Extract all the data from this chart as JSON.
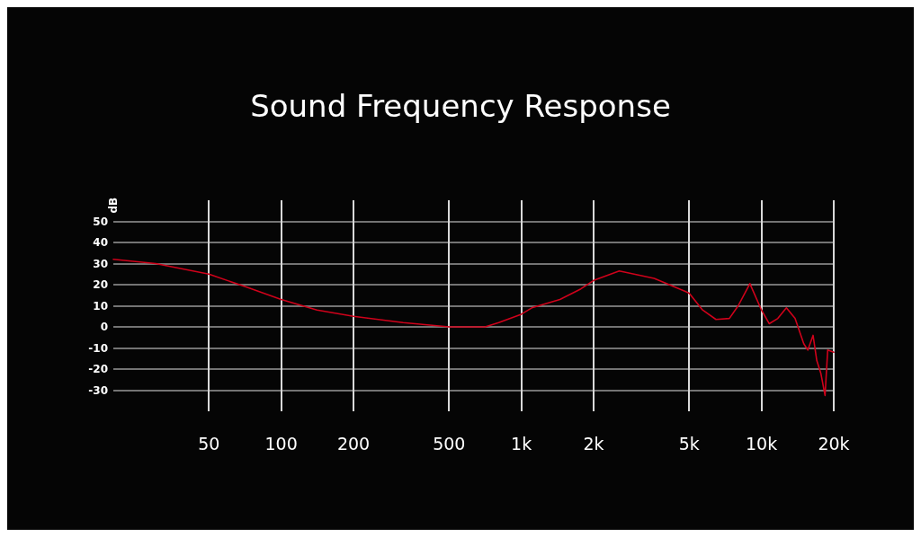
{
  "chart_data": {
    "type": "line",
    "title": "Sound Frequency Response",
    "ylabel": "dB",
    "x": [
      20,
      30,
      50,
      71,
      100,
      141,
      200,
      322,
      500,
      707,
      805,
      1000,
      1106,
      1448,
      1770,
      2000,
      2558,
      3574,
      5000,
      5685,
      6466,
      7350,
      8000,
      8950,
      10000,
      10770,
      11700,
      12700,
      13800,
      15000,
      15600,
      16400,
      17000,
      17670,
      18400,
      18870,
      20000
    ],
    "series": [
      {
        "color": "#d0021b",
        "values": [
          32,
          30,
          25,
          19,
          13,
          8,
          5,
          2,
          0,
          0,
          2,
          6,
          9,
          13,
          18,
          22,
          26.5,
          23,
          16,
          8,
          3.5,
          4,
          10,
          20.5,
          8,
          1.5,
          4,
          9,
          4,
          -8,
          -11,
          -4,
          -16,
          -22,
          -32.5,
          -11,
          -12
        ]
      }
    ],
    "xlim": [
      20,
      20000
    ],
    "log": "x",
    "xticks": [
      50,
      100,
      200,
      500,
      {
        "value": 1000,
        "label": "1k"
      },
      {
        "value": 2000,
        "label": "2k"
      },
      {
        "value": 5000,
        "label": "5k"
      },
      {
        "value": 10000,
        "label": "10k"
      },
      {
        "value": 20000,
        "label": "20k"
      }
    ],
    "ylim": [
      -40,
      60
    ],
    "yticks": [
      -30,
      -20,
      -10,
      0,
      10,
      20,
      30,
      40,
      50
    ],
    "grid": true,
    "marker": "none",
    "line_style": "solid"
  }
}
